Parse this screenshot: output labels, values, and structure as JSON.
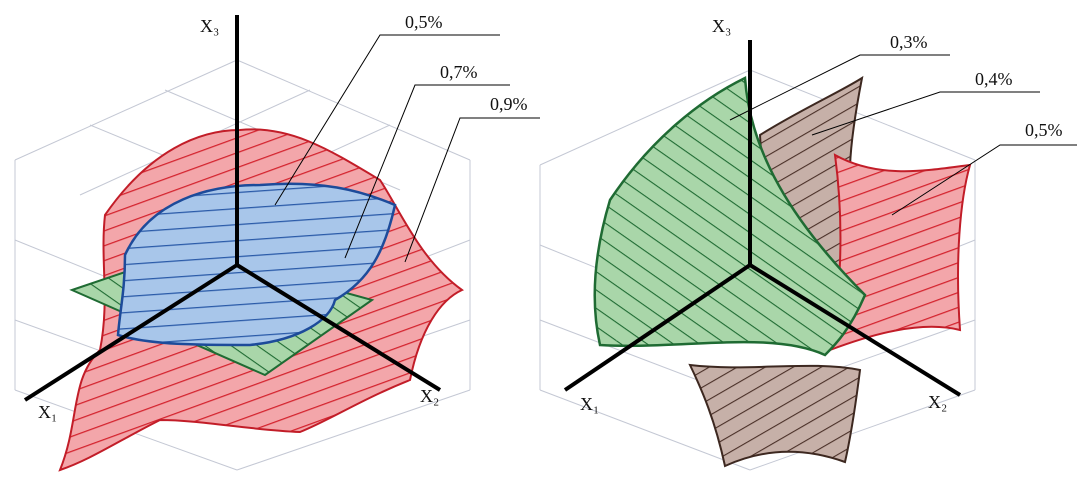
{
  "left": {
    "axes": {
      "x1": "X₁",
      "x2": "X₂",
      "x3": "X₃"
    },
    "labels": [
      "0,5%",
      "0,7%",
      "0,9%"
    ]
  },
  "right": {
    "axes": {
      "x1": "X₁",
      "x2": "X₂",
      "x3": "X₃"
    },
    "labels": [
      "0,3%",
      "0,4%",
      "0,5%"
    ]
  }
}
